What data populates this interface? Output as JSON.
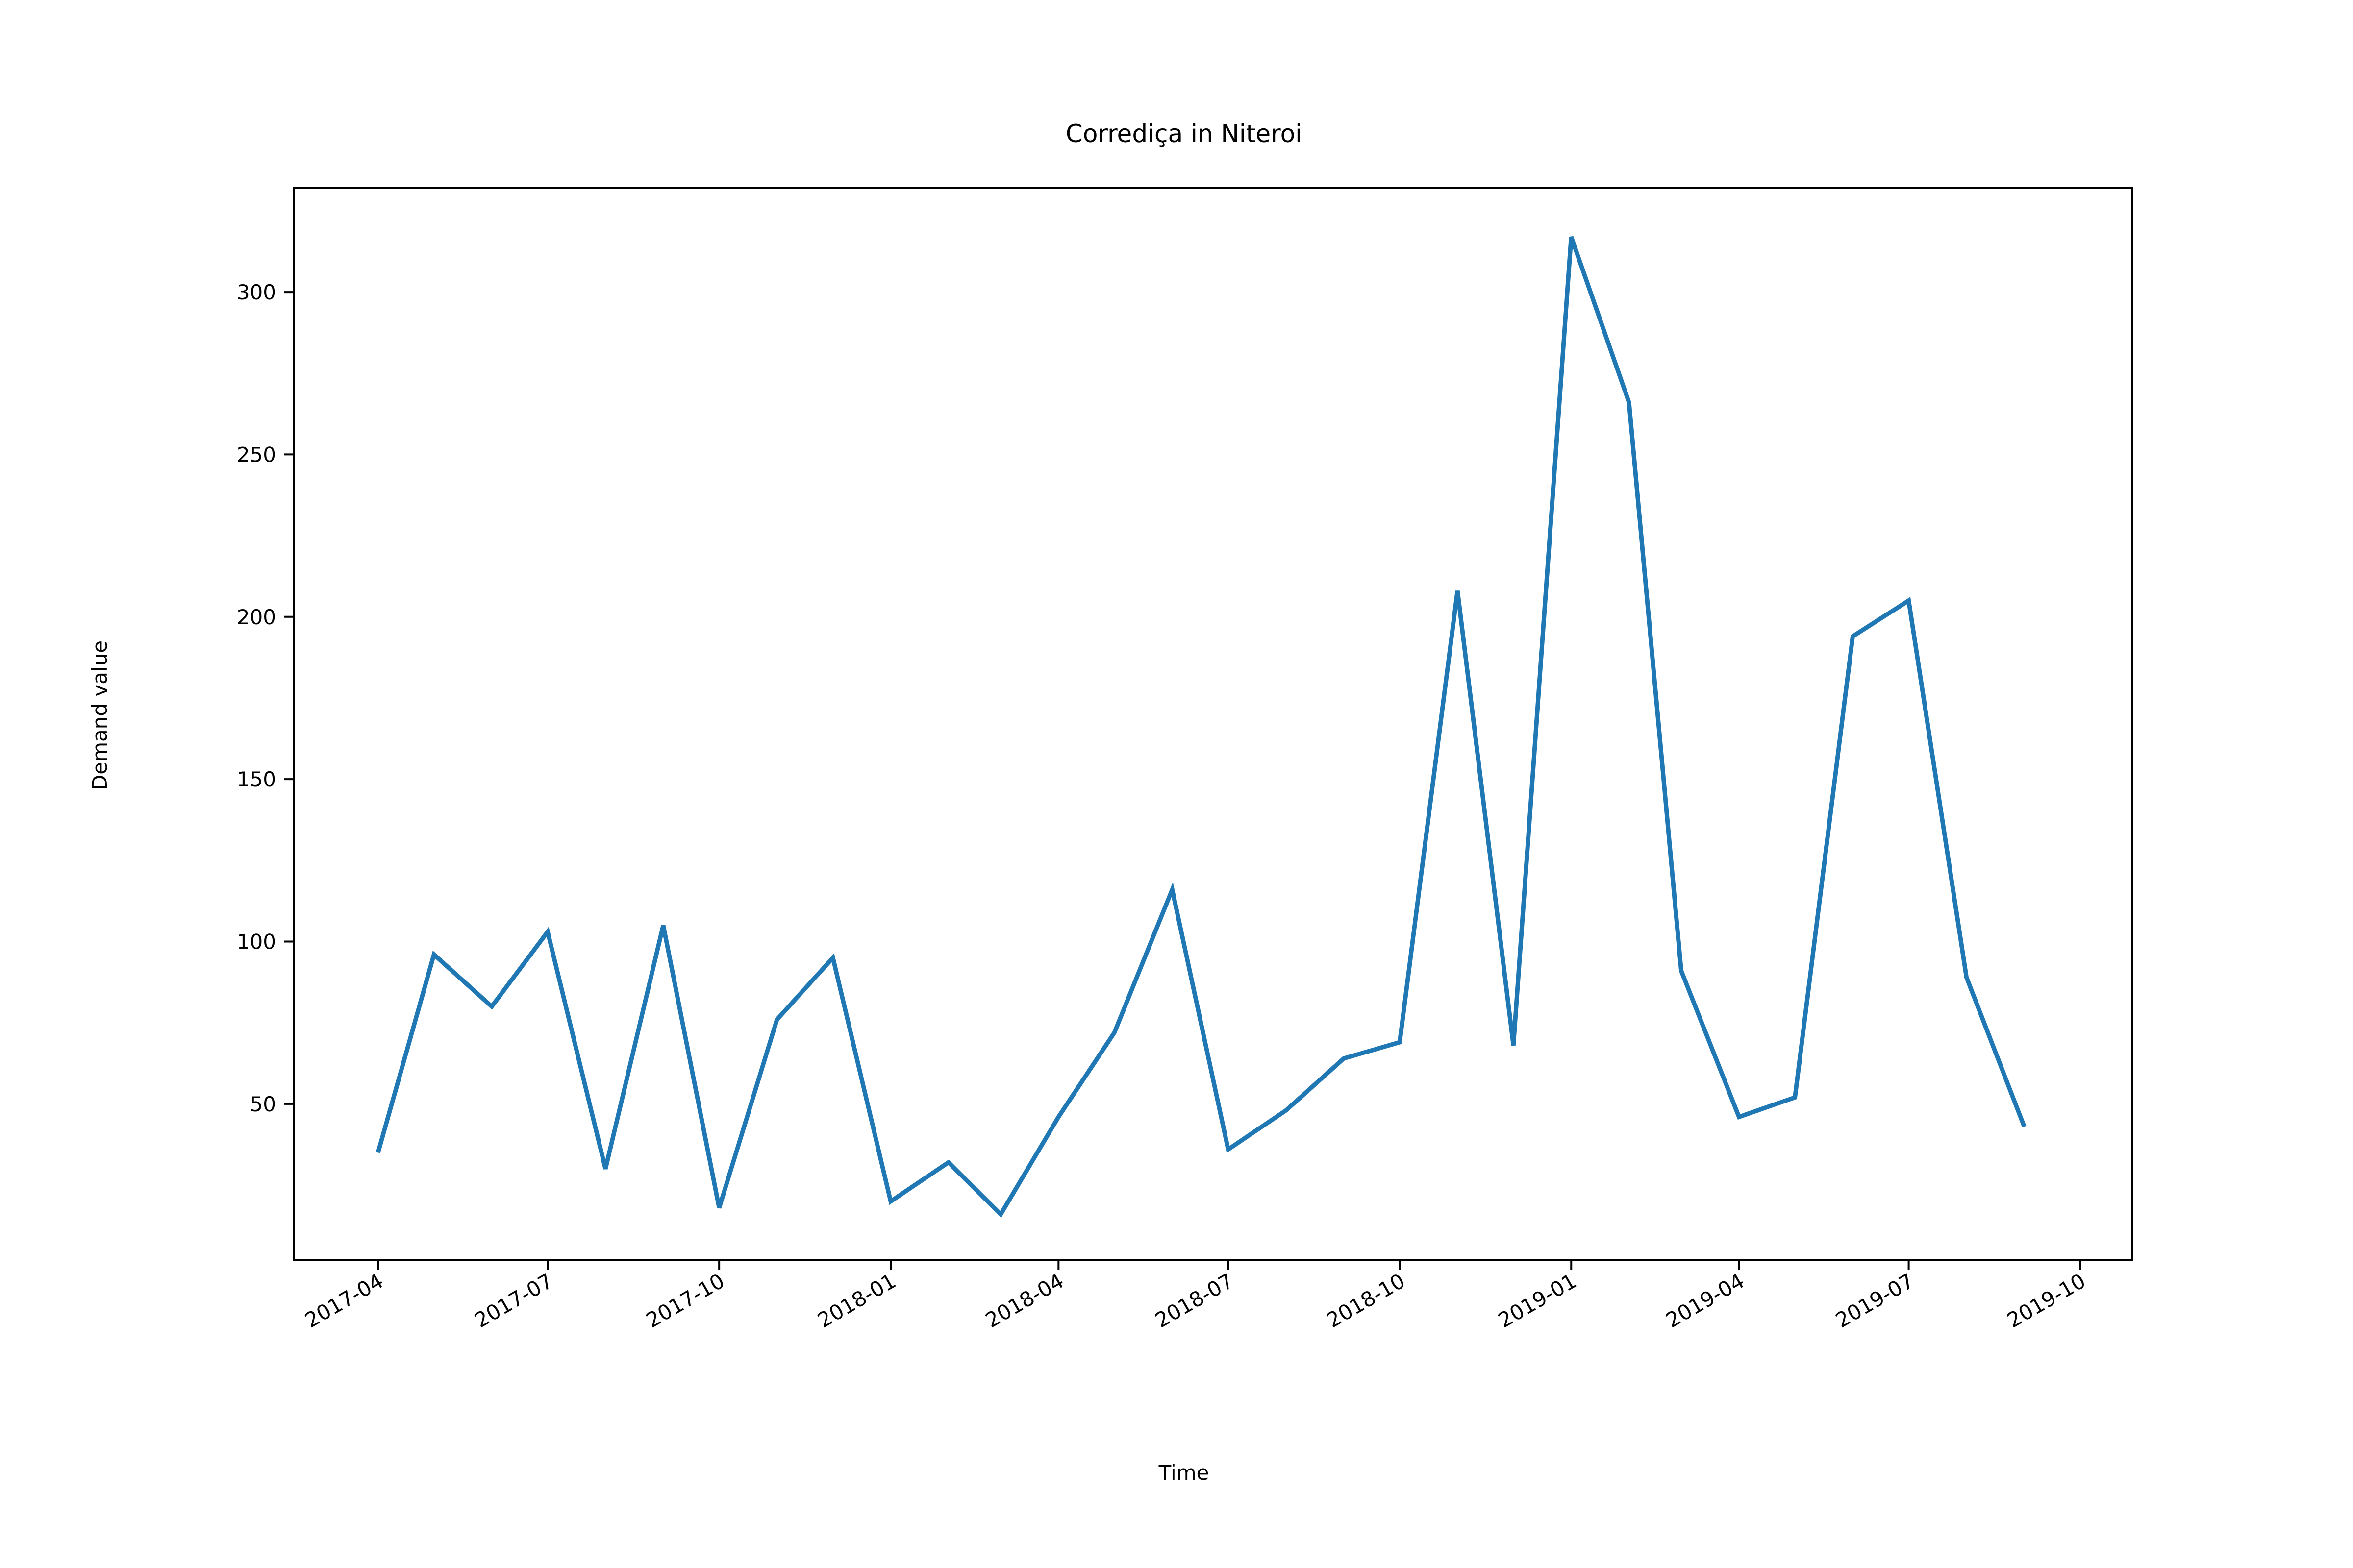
{
  "chart_data": {
    "type": "line",
    "title": "Corrediça in Niteroi",
    "xlabel": "Time",
    "ylabel": "Demand value",
    "x_ticks": [
      "2017-04",
      "2017-07",
      "2017-10",
      "2018-01",
      "2018-04",
      "2018-07",
      "2018-10",
      "2019-01",
      "2019-04",
      "2019-07",
      "2019-10"
    ],
    "y_ticks": [
      50,
      100,
      150,
      200,
      250,
      300
    ],
    "xlim": [
      "2017-02-15",
      "2019-10-29"
    ],
    "ylim": [
      2,
      332
    ],
    "grid": false,
    "color": "#1f77b4",
    "series": [
      {
        "x": [
          "2017-04-01",
          "2017-05-01",
          "2017-06-01",
          "2017-07-01",
          "2017-08-01",
          "2017-09-01",
          "2017-10-01",
          "2017-11-01",
          "2017-12-01",
          "2018-01-01",
          "2018-02-01",
          "2018-03-01",
          "2018-04-01",
          "2018-05-01",
          "2018-06-01",
          "2018-07-01",
          "2018-08-01",
          "2018-09-01",
          "2018-10-01",
          "2018-11-01",
          "2018-12-01",
          "2019-01-01",
          "2019-02-01",
          "2019-03-01",
          "2019-04-01",
          "2019-05-01",
          "2019-06-01",
          "2019-07-01",
          "2019-08-01",
          "2019-09-01"
        ],
        "values": [
          35,
          96,
          80,
          103,
          30,
          105,
          18,
          76,
          95,
          20,
          32,
          16,
          46,
          72,
          116,
          36,
          48,
          64,
          69,
          208,
          68,
          317,
          266,
          91,
          46,
          52,
          194,
          205,
          89,
          43
        ]
      }
    ]
  }
}
